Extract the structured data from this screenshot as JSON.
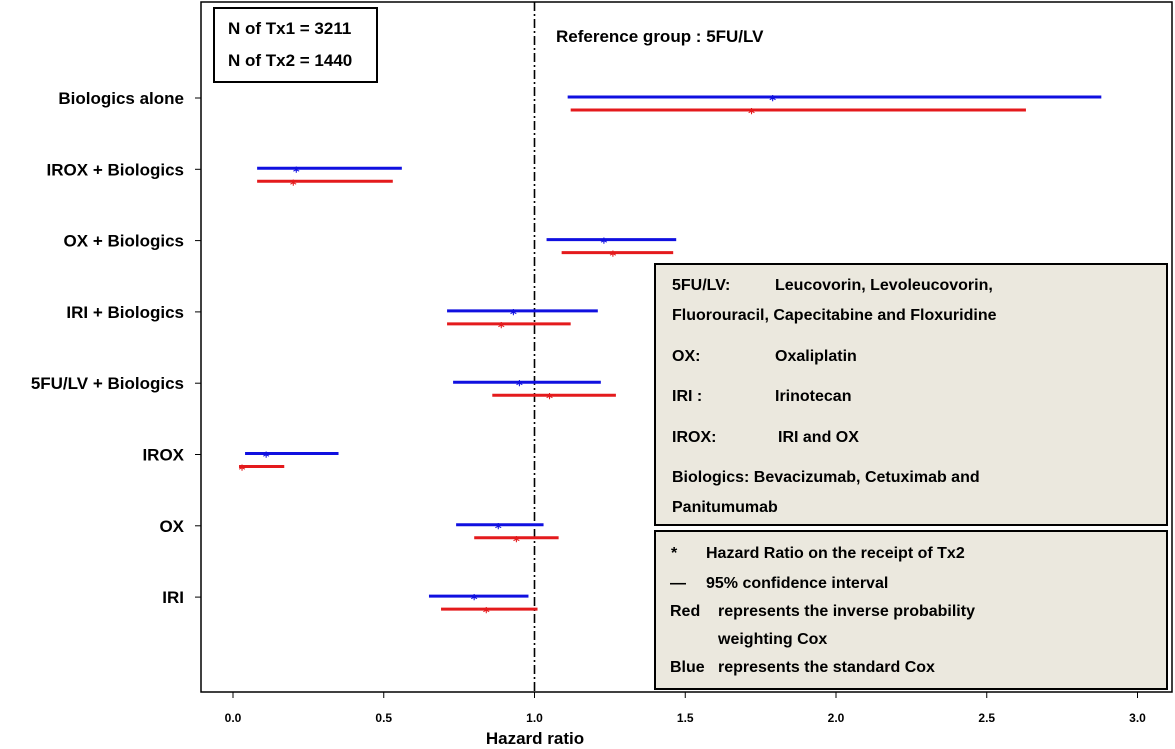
{
  "colors": {
    "red": "#e41a1c",
    "blue": "#1010e0",
    "legend_bg": "#ebe8de"
  },
  "sample_box": [
    "N of Tx1 = 3211",
    "N of Tx2 = 1440"
  ],
  "reference_text": "Reference group : 5FU/LV",
  "definitions": {
    "fivefu": [
      "5FU/LV:",
      "Leucovorin, Levoleucovorin,",
      "Fluorouracil,  Capecitabine  and Floxuridine"
    ],
    "ox": [
      "OX:",
      "Oxaliplatin"
    ],
    "iri": [
      "IRI :",
      "Irinotecan"
    ],
    "irox": [
      "IROX:",
      "IRI and OX"
    ],
    "biologics": [
      "Biologics: Bevacizumab, Cetuximab and",
      "Panitumumab"
    ]
  },
  "key": {
    "star_symbol": "*",
    "star_text": "Hazard Ratio on the receipt of Tx2",
    "dash_symbol": "—",
    "dash_text": "95% confidence interval",
    "red_word": "Red",
    "red_text_1": "represents the inverse probability",
    "red_text_2": "weighting Cox",
    "blue_word": "Blue",
    "blue_text": "represents the standard Cox"
  },
  "chart_data": {
    "type": "forest",
    "xlabel": "Hazard ratio",
    "xlim": [
      -0.1,
      3.1
    ],
    "xticks": [
      "0.0",
      "0.5",
      "1.0",
      "1.5",
      "2.0",
      "2.5",
      "3.0"
    ],
    "reference_line": 1.0,
    "categories": [
      "Biologics alone",
      "IROX + Biologics",
      "OX + Biologics",
      "IRI + Biologics",
      "5FU/LV + Biologics",
      "IROX",
      "OX",
      "IRI"
    ],
    "series": [
      {
        "name": "standard Cox",
        "color": "blue",
        "hr": [
          1.79,
          0.21,
          1.23,
          0.93,
          0.95,
          0.11,
          0.88,
          0.8
        ],
        "lower": [
          1.11,
          0.08,
          1.04,
          0.71,
          0.73,
          0.04,
          0.74,
          0.65
        ],
        "upper": [
          2.88,
          0.56,
          1.47,
          1.21,
          1.22,
          0.35,
          1.03,
          0.98
        ]
      },
      {
        "name": "inverse probability weighting Cox",
        "color": "red",
        "hr": [
          1.72,
          0.2,
          1.26,
          0.89,
          1.05,
          0.03,
          0.94,
          0.84
        ],
        "lower": [
          1.12,
          0.08,
          1.09,
          0.71,
          0.86,
          0.02,
          0.8,
          0.69
        ],
        "upper": [
          2.63,
          0.53,
          1.46,
          1.12,
          1.27,
          0.17,
          1.08,
          1.01
        ]
      }
    ]
  }
}
